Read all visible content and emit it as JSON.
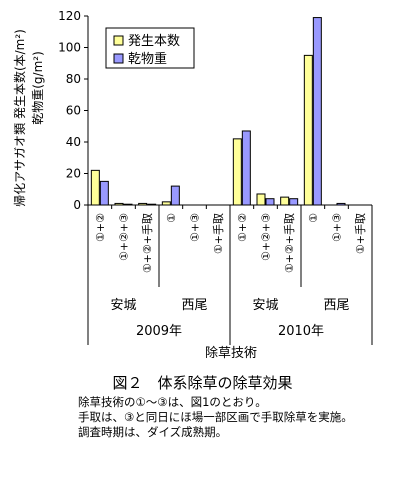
{
  "chart_data": {
    "type": "bar",
    "ylabel_line1": "帰化アサガオ類 発生本数(本/m²)",
    "ylabel_line2": "乾物重(g/m²)",
    "xlabel": "除草技術",
    "ylim": [
      0,
      120
    ],
    "yticks": [
      0,
      20,
      40,
      60,
      80,
      100,
      120
    ],
    "legend_position": "top-right",
    "categories": [
      "①+②",
      "①+②+③",
      "①+②+手取",
      "①",
      "①+③",
      "①+手取",
      "①+②",
      "①+②+③",
      "①+②+手取",
      "①",
      "①+③",
      "①+手取"
    ],
    "location_groups": [
      {
        "label": "安城",
        "start": 0,
        "end": 2
      },
      {
        "label": "西尾",
        "start": 3,
        "end": 5
      },
      {
        "label": "安城",
        "start": 6,
        "end": 8
      },
      {
        "label": "西尾",
        "start": 9,
        "end": 11
      }
    ],
    "year_groups": [
      {
        "label": "2009年",
        "start": 0,
        "end": 5
      },
      {
        "label": "2010年",
        "start": 6,
        "end": 11
      }
    ],
    "series": [
      {
        "name": "発生本数",
        "color": "#ffff99",
        "values": [
          22,
          1,
          1,
          2,
          0,
          0,
          42,
          7,
          5,
          95,
          0,
          0
        ]
      },
      {
        "name": "乾物重",
        "color": "#9999ff",
        "values": [
          15,
          0.5,
          0.5,
          12,
          0,
          0,
          47,
          4,
          4,
          119,
          1,
          0
        ]
      }
    ]
  },
  "caption": "図２　体系除草の除草効果",
  "notes": [
    "除草技術の①～③は、図1のとおり。",
    "手取は、③と同日にほ場一部区画で手取除草を実施。",
    "調査時期は、ダイズ成熟期。"
  ]
}
